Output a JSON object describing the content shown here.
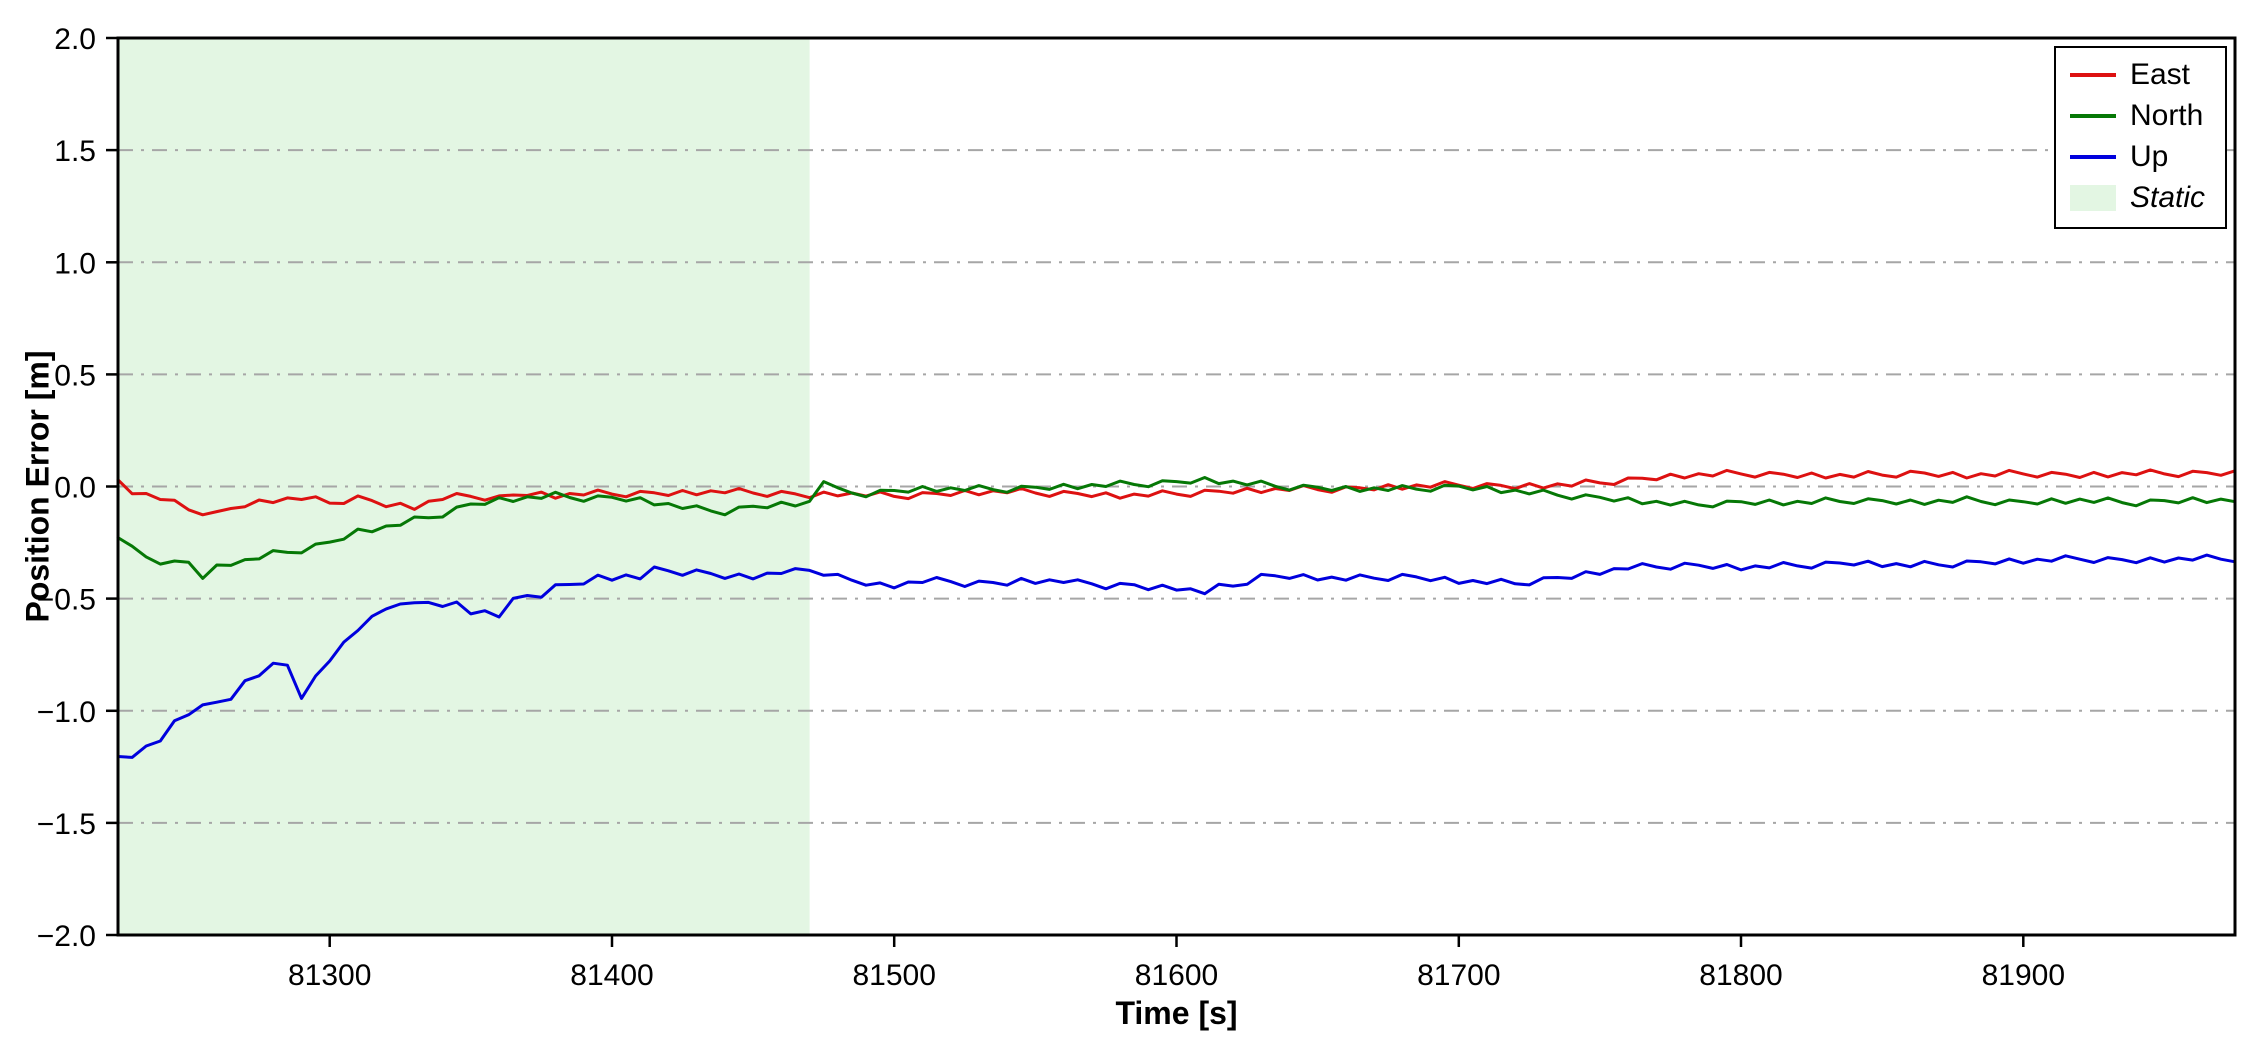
{
  "figure": {
    "background": "#ffffff",
    "plot_background": "#ffffff"
  },
  "chart_data": {
    "type": "line",
    "title": "",
    "xlabel": "Time [s]",
    "ylabel": "Position Error [m]",
    "xlim": [
      81225,
      81975
    ],
    "ylim": [
      -2.0,
      2.0
    ],
    "xticks": [
      81300,
      81400,
      81500,
      81600,
      81700,
      81800,
      81900
    ],
    "yticks": [
      -2.0,
      -1.5,
      -1.0,
      -0.5,
      0.0,
      0.5,
      1.0,
      1.5,
      2.0
    ],
    "grid": {
      "axis": "y",
      "style": "dash-dot",
      "color": "#a6a6a6"
    },
    "legend_position": "upper right",
    "shaded_region": {
      "label": "Static",
      "x_start": 81225,
      "x_end": 81470,
      "color": "#e3f6e3"
    },
    "x": [
      81225,
      81230,
      81235,
      81240,
      81245,
      81250,
      81255,
      81260,
      81265,
      81270,
      81275,
      81280,
      81285,
      81290,
      81295,
      81300,
      81305,
      81310,
      81315,
      81320,
      81325,
      81330,
      81335,
      81340,
      81345,
      81350,
      81355,
      81360,
      81365,
      81370,
      81375,
      81380,
      81385,
      81390,
      81395,
      81400,
      81405,
      81410,
      81415,
      81420,
      81425,
      81430,
      81435,
      81440,
      81445,
      81450,
      81455,
      81460,
      81465,
      81470,
      81475,
      81480,
      81485,
      81490,
      81495,
      81500,
      81505,
      81510,
      81515,
      81520,
      81525,
      81530,
      81535,
      81540,
      81545,
      81550,
      81555,
      81560,
      81565,
      81570,
      81575,
      81580,
      81585,
      81590,
      81595,
      81600,
      81605,
      81610,
      81615,
      81620,
      81625,
      81630,
      81635,
      81640,
      81645,
      81650,
      81655,
      81660,
      81665,
      81670,
      81675,
      81680,
      81685,
      81690,
      81695,
      81700,
      81705,
      81710,
      81715,
      81720,
      81725,
      81730,
      81735,
      81740,
      81745,
      81750,
      81755,
      81760,
      81765,
      81770,
      81775,
      81780,
      81785,
      81790,
      81795,
      81800,
      81805,
      81810,
      81815,
      81820,
      81825,
      81830,
      81835,
      81840,
      81845,
      81850,
      81855,
      81860,
      81865,
      81870,
      81875,
      81880,
      81885,
      81890,
      81895,
      81900,
      81905,
      81910,
      81915,
      81920,
      81925,
      81930,
      81935,
      81940,
      81945,
      81950,
      81955,
      81960,
      81965,
      81970,
      81975
    ],
    "series": [
      {
        "name": "East",
        "color": "#dd1111",
        "values": [
          0.03,
          -0.032,
          -0.031,
          -0.058,
          -0.061,
          -0.104,
          -0.126,
          -0.112,
          -0.098,
          -0.09,
          -0.06,
          -0.072,
          -0.051,
          -0.058,
          -0.046,
          -0.074,
          -0.076,
          -0.042,
          -0.063,
          -0.09,
          -0.075,
          -0.102,
          -0.066,
          -0.058,
          -0.031,
          -0.044,
          -0.061,
          -0.042,
          -0.038,
          -0.04,
          -0.025,
          -0.052,
          -0.031,
          -0.038,
          -0.016,
          -0.034,
          -0.046,
          -0.022,
          -0.028,
          -0.04,
          -0.018,
          -0.037,
          -0.019,
          -0.028,
          -0.009,
          -0.029,
          -0.044,
          -0.022,
          -0.033,
          -0.05,
          -0.025,
          -0.042,
          -0.029,
          -0.043,
          -0.024,
          -0.044,
          -0.054,
          -0.027,
          -0.031,
          -0.04,
          -0.018,
          -0.037,
          -0.019,
          -0.028,
          -0.009,
          -0.029,
          -0.044,
          -0.022,
          -0.031,
          -0.045,
          -0.028,
          -0.052,
          -0.034,
          -0.043,
          -0.019,
          -0.034,
          -0.044,
          -0.017,
          -0.021,
          -0.03,
          -0.008,
          -0.027,
          -0.009,
          -0.018,
          0.004,
          -0.014,
          -0.026,
          -0.002,
          -0.006,
          -0.015,
          0.008,
          -0.012,
          0.007,
          -0.003,
          0.022,
          0.006,
          -0.009,
          0.013,
          0.005,
          -0.01,
          0.013,
          -0.007,
          0.012,
          0.002,
          0.029,
          0.016,
          0.009,
          0.038,
          0.037,
          0.03,
          0.055,
          0.038,
          0.057,
          0.047,
          0.072,
          0.056,
          0.042,
          0.063,
          0.055,
          0.04,
          0.06,
          0.038,
          0.054,
          0.042,
          0.067,
          0.051,
          0.042,
          0.068,
          0.06,
          0.045,
          0.063,
          0.038,
          0.057,
          0.047,
          0.072,
          0.056,
          0.042,
          0.063,
          0.055,
          0.04,
          0.063,
          0.043,
          0.062,
          0.052,
          0.074,
          0.056,
          0.044,
          0.068,
          0.062,
          0.05,
          0.07
        ]
      },
      {
        "name": "North",
        "color": "#067806",
        "values": [
          -0.228,
          -0.266,
          -0.314,
          -0.346,
          -0.332,
          -0.338,
          -0.41,
          -0.35,
          -0.352,
          -0.326,
          -0.323,
          -0.286,
          -0.294,
          -0.296,
          -0.257,
          -0.248,
          -0.235,
          -0.19,
          -0.202,
          -0.176,
          -0.173,
          -0.136,
          -0.139,
          -0.136,
          -0.092,
          -0.078,
          -0.08,
          -0.05,
          -0.067,
          -0.046,
          -0.053,
          -0.026,
          -0.049,
          -0.066,
          -0.042,
          -0.048,
          -0.065,
          -0.05,
          -0.082,
          -0.076,
          -0.098,
          -0.086,
          -0.109,
          -0.126,
          -0.092,
          -0.088,
          -0.095,
          -0.07,
          -0.087,
          -0.066,
          0.022,
          -0.006,
          -0.029,
          -0.046,
          -0.017,
          -0.018,
          -0.025,
          0.0,
          -0.022,
          -0.006,
          -0.018,
          0.004,
          -0.014,
          -0.026,
          0.001,
          -0.003,
          -0.013,
          0.01,
          -0.01,
          0.009,
          0.0,
          0.024,
          0.009,
          -0.001,
          0.026,
          0.022,
          0.015,
          0.04,
          0.013,
          0.024,
          0.007,
          0.024,
          0.001,
          -0.016,
          0.006,
          -0.003,
          -0.018,
          0.0,
          -0.022,
          -0.006,
          -0.018,
          0.004,
          -0.012,
          -0.021,
          0.006,
          0.002,
          -0.015,
          0.0,
          -0.027,
          -0.016,
          -0.033,
          -0.016,
          -0.039,
          -0.056,
          -0.037,
          -0.048,
          -0.065,
          -0.05,
          -0.077,
          -0.066,
          -0.083,
          -0.066,
          -0.082,
          -0.091,
          -0.065,
          -0.068,
          -0.08,
          -0.06,
          -0.082,
          -0.066,
          -0.076,
          -0.051,
          -0.067,
          -0.076,
          -0.055,
          -0.063,
          -0.078,
          -0.06,
          -0.08,
          -0.061,
          -0.071,
          -0.046,
          -0.067,
          -0.081,
          -0.06,
          -0.068,
          -0.078,
          -0.055,
          -0.075,
          -0.056,
          -0.071,
          -0.051,
          -0.072,
          -0.086,
          -0.06,
          -0.063,
          -0.073,
          -0.05,
          -0.072,
          -0.056,
          -0.068
        ]
      },
      {
        "name": "Up",
        "color": "#0000dd",
        "values": [
          -1.204,
          -1.208,
          -1.157,
          -1.135,
          -1.045,
          -1.018,
          -0.974,
          -0.962,
          -0.949,
          -0.866,
          -0.844,
          -0.788,
          -0.797,
          -0.945,
          -0.845,
          -0.778,
          -0.694,
          -0.642,
          -0.579,
          -0.546,
          -0.524,
          -0.518,
          -0.517,
          -0.535,
          -0.515,
          -0.568,
          -0.554,
          -0.582,
          -0.499,
          -0.486,
          -0.494,
          -0.438,
          -0.437,
          -0.435,
          -0.395,
          -0.418,
          -0.394,
          -0.412,
          -0.359,
          -0.376,
          -0.396,
          -0.372,
          -0.388,
          -0.41,
          -0.39,
          -0.412,
          -0.386,
          -0.388,
          -0.366,
          -0.374,
          -0.396,
          -0.392,
          -0.418,
          -0.44,
          -0.43,
          -0.452,
          -0.426,
          -0.428,
          -0.406,
          -0.424,
          -0.446,
          -0.422,
          -0.428,
          -0.44,
          -0.41,
          -0.432,
          -0.416,
          -0.428,
          -0.416,
          -0.434,
          -0.456,
          -0.432,
          -0.438,
          -0.46,
          -0.44,
          -0.462,
          -0.456,
          -0.478,
          -0.436,
          -0.444,
          -0.436,
          -0.392,
          -0.398,
          -0.41,
          -0.393,
          -0.417,
          -0.404,
          -0.418,
          -0.394,
          -0.409,
          -0.419,
          -0.392,
          -0.403,
          -0.42,
          -0.405,
          -0.432,
          -0.419,
          -0.433,
          -0.414,
          -0.434,
          -0.439,
          -0.407,
          -0.406,
          -0.41,
          -0.38,
          -0.392,
          -0.366,
          -0.368,
          -0.344,
          -0.359,
          -0.369,
          -0.342,
          -0.351,
          -0.365,
          -0.348,
          -0.372,
          -0.354,
          -0.363,
          -0.339,
          -0.354,
          -0.364,
          -0.337,
          -0.341,
          -0.35,
          -0.333,
          -0.357,
          -0.344,
          -0.358,
          -0.334,
          -0.349,
          -0.359,
          -0.332,
          -0.336,
          -0.345,
          -0.323,
          -0.342,
          -0.324,
          -0.333,
          -0.309,
          -0.324,
          -0.339,
          -0.317,
          -0.326,
          -0.34,
          -0.318,
          -0.337,
          -0.319,
          -0.328,
          -0.306,
          -0.324,
          -0.336
        ]
      }
    ]
  }
}
